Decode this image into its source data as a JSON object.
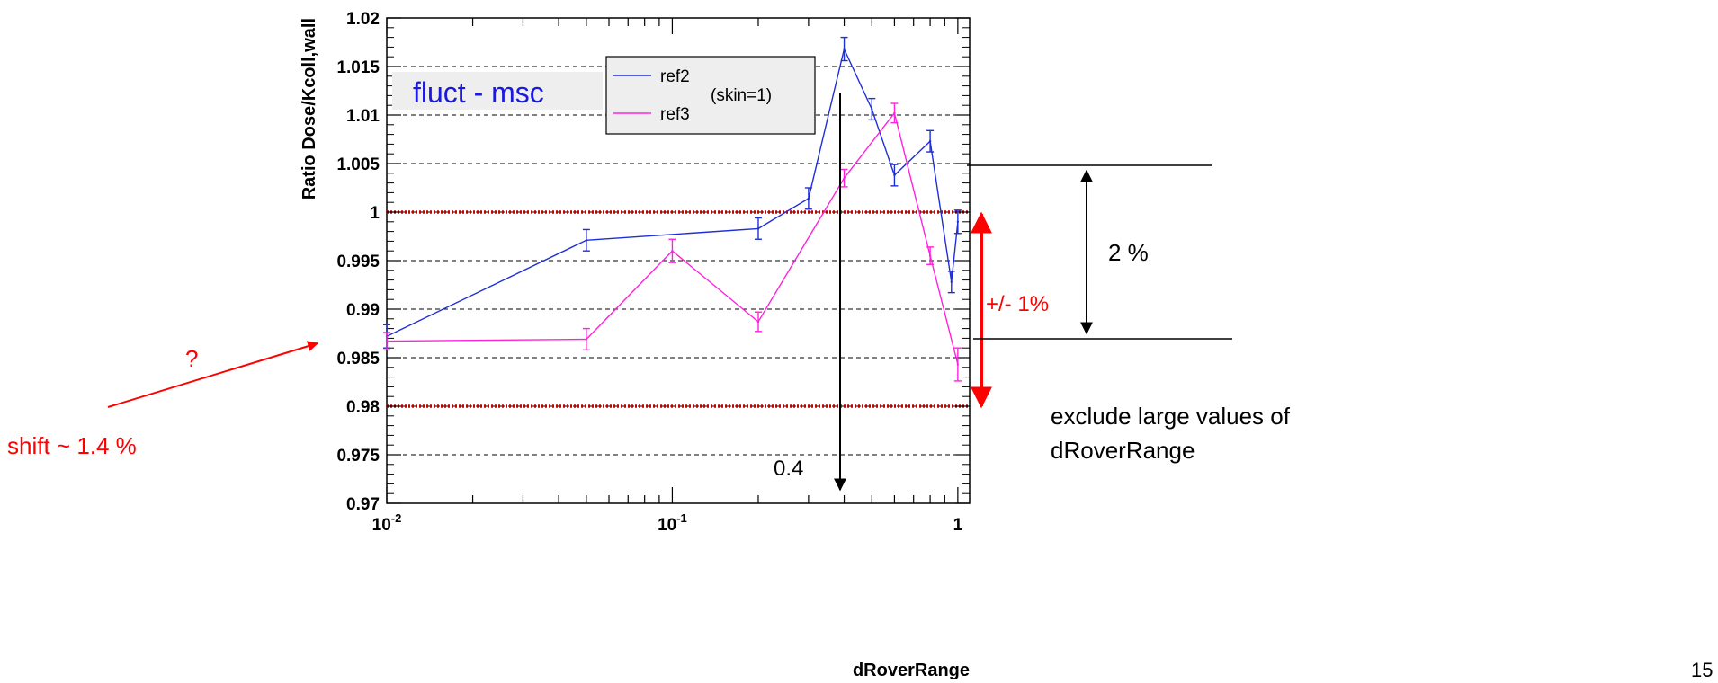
{
  "chart_data": {
    "type": "line",
    "xlabel": "dRoverRange",
    "ylabel": "Ratio Dose/Kcoll,wall",
    "xscale": "log",
    "xlim": [
      0.01,
      1.1
    ],
    "ylim": [
      0.97,
      1.02
    ],
    "grid": "horizontal-dashed",
    "legend_position": "top-center",
    "x_ticks": [
      {
        "value": 0.01,
        "base": "10",
        "exp": "-2"
      },
      {
        "value": 0.1,
        "base": "10",
        "exp": "-1"
      },
      {
        "value": 1,
        "base": "1",
        "exp": ""
      }
    ],
    "y_ticks": [
      0.97,
      0.975,
      0.98,
      0.985,
      0.99,
      0.995,
      1,
      1.005,
      1.01,
      1.015,
      1.02
    ],
    "y_tick_labels": [
      "0.97",
      "0.975",
      "0.98",
      "0.985",
      "0.99",
      "0.995",
      "1",
      "1.005",
      "1.01",
      "1.015",
      "1.02"
    ],
    "series": [
      {
        "name": "ref2",
        "color": "#1f2fd6",
        "x": [
          0.01,
          0.05,
          0.2,
          0.3,
          0.4,
          0.5,
          0.6,
          0.8,
          0.95,
          1.0
        ],
        "y": [
          0.9872,
          0.9971,
          0.9983,
          1.0014,
          1.0168,
          1.0106,
          1.0038,
          1.0073,
          0.9928,
          0.999
        ],
        "err": [
          0.0012,
          0.0011,
          0.0011,
          0.0011,
          0.0012,
          0.0011,
          0.0011,
          0.0011,
          0.0011,
          0.0012
        ]
      },
      {
        "name": "ref3",
        "color": "#ff22dd",
        "x": [
          0.01,
          0.05,
          0.1,
          0.2,
          0.4,
          0.6,
          0.8,
          1.0
        ],
        "y": [
          0.9867,
          0.9869,
          0.996,
          0.9887,
          1.0035,
          1.0102,
          0.9955,
          0.9843
        ],
        "err": [
          0.0009,
          0.0011,
          0.0012,
          0.001,
          0.0009,
          0.001,
          0.0009,
          0.0017
        ]
      }
    ],
    "reference_lines": [
      {
        "y": 1.0,
        "color": "#c00000",
        "style": "dotted"
      },
      {
        "y": 0.98,
        "color": "#c00000",
        "style": "dotted"
      }
    ]
  },
  "annotations": {
    "plot_label": "fluct - msc",
    "legend_note": "(skin=1)",
    "question_mark": "?",
    "shift_note": "shift ~ 1.4 %",
    "value_marker": "0.4",
    "band_note": "+/- 1%",
    "spread_note": "2 %",
    "exclude_note_line1": "exclude large values of",
    "exclude_note_line2": "dRoverRange",
    "page_number": "15",
    "colors": {
      "red_note": "#ff0000",
      "blue_label": "#1a1adc",
      "label_box": "#eeeeee"
    }
  }
}
